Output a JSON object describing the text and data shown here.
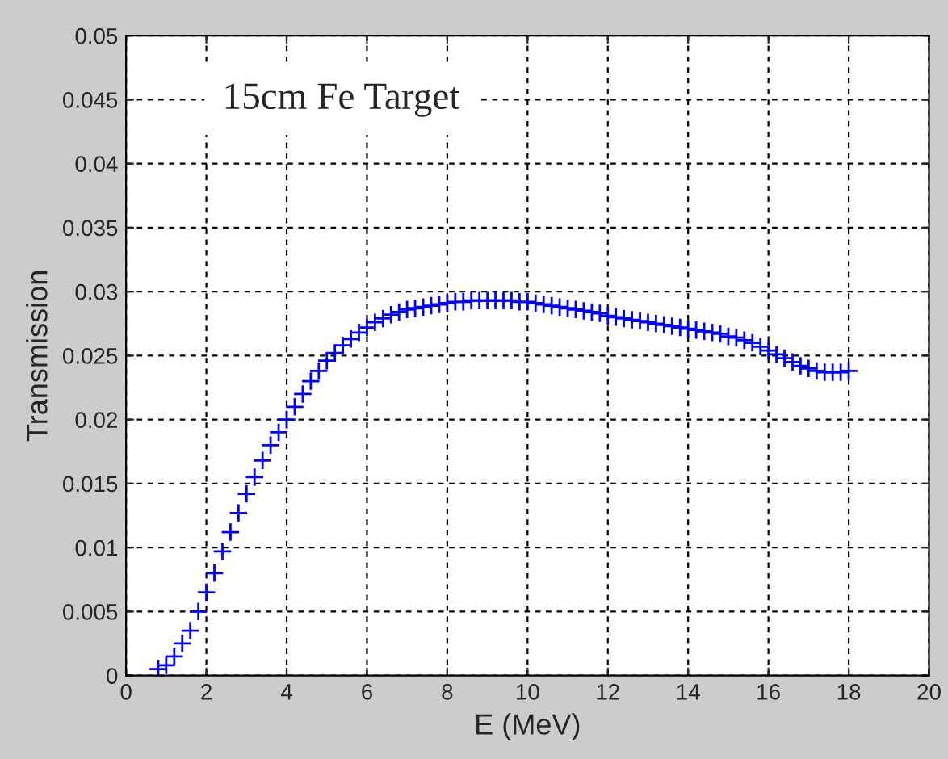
{
  "chart_data": {
    "type": "scatter",
    "xlabel": "E (MeV)",
    "ylabel": "Transmission",
    "annotations": [
      "15cm Fe Target"
    ],
    "x": [
      0.8,
      1.0,
      1.2,
      1.4,
      1.6,
      1.8,
      2.0,
      2.2,
      2.4,
      2.6,
      2.8,
      3.0,
      3.2,
      3.4,
      3.6,
      3.8,
      4.0,
      4.2,
      4.4,
      4.6,
      4.8,
      5.0,
      5.2,
      5.4,
      5.6,
      5.8,
      6.0,
      6.2,
      6.4,
      6.6,
      6.8,
      7.0,
      7.2,
      7.4,
      7.6,
      7.8,
      8.0,
      8.2,
      8.4,
      8.6,
      8.8,
      9.0,
      9.2,
      9.4,
      9.6,
      9.8,
      10.0,
      10.2,
      10.4,
      10.6,
      10.8,
      11.0,
      11.2,
      11.4,
      11.6,
      11.8,
      12.0,
      12.2,
      12.4,
      12.6,
      12.8,
      13.0,
      13.2,
      13.4,
      13.6,
      13.8,
      14.0,
      14.2,
      14.4,
      14.6,
      14.8,
      15.0,
      15.2,
      15.4,
      15.6,
      15.8,
      16.0,
      16.2,
      16.4,
      16.6,
      16.8,
      17.0,
      17.2,
      17.4,
      17.6,
      17.8,
      18.0
    ],
    "series": [
      {
        "color": "#0000ff",
        "values": [
          0.0005,
          0.0008,
          0.0015,
          0.0025,
          0.0035,
          0.005,
          0.0065,
          0.008,
          0.0097,
          0.0112,
          0.0127,
          0.0142,
          0.0155,
          0.0168,
          0.018,
          0.019,
          0.02,
          0.021,
          0.022,
          0.023,
          0.0238,
          0.0246,
          0.0252,
          0.0258,
          0.0263,
          0.0268,
          0.0272,
          0.0276,
          0.0279,
          0.0282,
          0.0284,
          0.0286,
          0.0287,
          0.0288,
          0.0289,
          0.029,
          0.0291,
          0.0292,
          0.0292,
          0.0293,
          0.0293,
          0.0293,
          0.0293,
          0.0293,
          0.0293,
          0.0292,
          0.0292,
          0.0291,
          0.029,
          0.0289,
          0.0288,
          0.0287,
          0.0286,
          0.0285,
          0.0284,
          0.0283,
          0.0281,
          0.028,
          0.0279,
          0.0278,
          0.0277,
          0.0276,
          0.0275,
          0.0274,
          0.0273,
          0.0272,
          0.0271,
          0.027,
          0.0269,
          0.0268,
          0.0267,
          0.0265,
          0.0264,
          0.0262,
          0.026,
          0.0257,
          0.0254,
          0.0251,
          0.0248,
          0.0245,
          0.0242,
          0.024,
          0.0238,
          0.0237,
          0.0237,
          0.0237,
          0.0238
        ]
      }
    ],
    "xlim": [
      0,
      20
    ],
    "xticks": [
      0,
      2,
      4,
      6,
      8,
      10,
      12,
      14,
      16,
      18,
      20
    ],
    "ylim": [
      0,
      0.05
    ],
    "yticks": [
      0,
      0.005,
      0.01,
      0.015,
      0.02,
      0.025,
      0.03,
      0.035,
      0.04,
      0.045,
      0.05
    ],
    "grid": true,
    "marker": "cross"
  }
}
